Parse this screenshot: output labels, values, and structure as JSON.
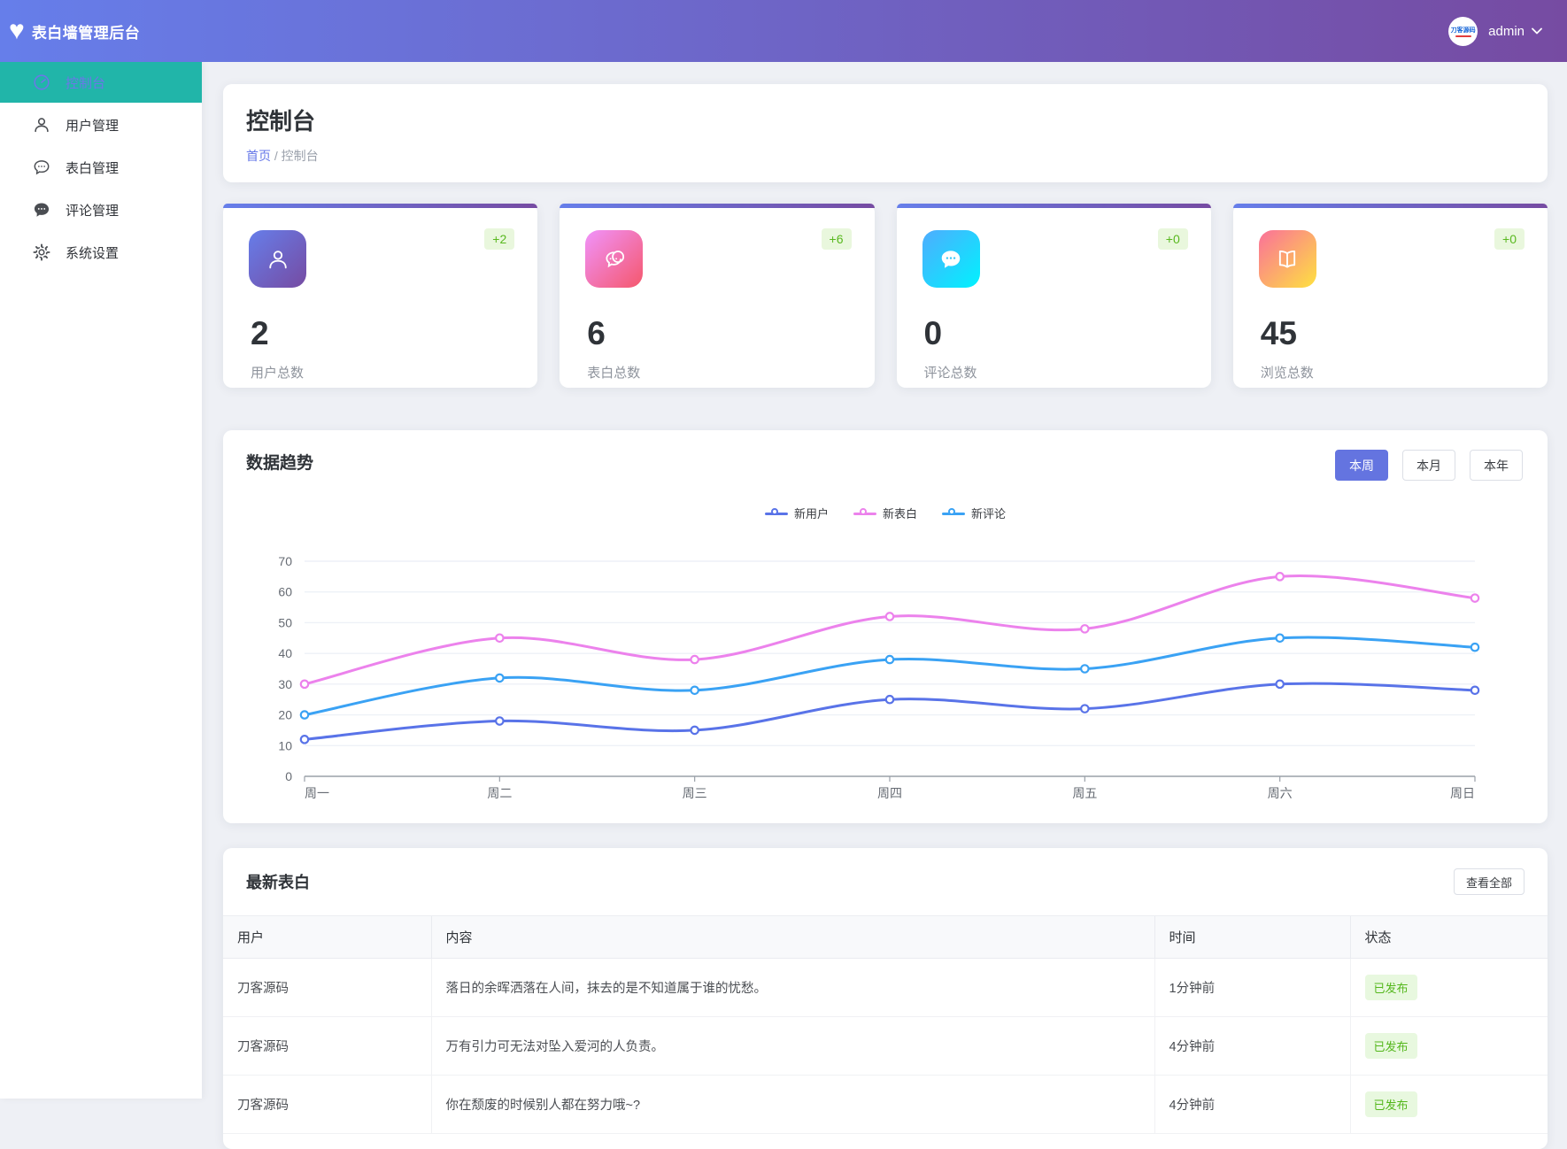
{
  "app": {
    "title": "表白墙管理后台",
    "logo_icon": "heart-icon"
  },
  "header": {
    "user": {
      "name": "admin",
      "avatar_text": "刀客源码"
    }
  },
  "sidebar": {
    "items": [
      {
        "label": "控制台",
        "icon": "dashboard-icon",
        "active": true
      },
      {
        "label": "用户管理",
        "icon": "user-icon",
        "active": false
      },
      {
        "label": "表白管理",
        "icon": "confession-bubble-icon",
        "active": false
      },
      {
        "label": "评论管理",
        "icon": "comment-bubble-icon",
        "active": false
      },
      {
        "label": "系统设置",
        "icon": "gear-icon",
        "active": false
      }
    ]
  },
  "page": {
    "title": "控制台",
    "breadcrumb": {
      "home": "首页",
      "separator": " / ",
      "current": "控制台"
    }
  },
  "stats": [
    {
      "value": "2",
      "label": "用户总数",
      "delta": "+2",
      "icon": "users-stat-icon",
      "gradient": [
        "#667eea",
        "#764ba2"
      ]
    },
    {
      "value": "6",
      "label": "表白总数",
      "delta": "+6",
      "icon": "confession-stat-icon",
      "gradient": [
        "#f093fb",
        "#f5576c"
      ]
    },
    {
      "value": "0",
      "label": "评论总数",
      "delta": "+0",
      "icon": "comments-stat-icon",
      "gradient": [
        "#4facfe",
        "#00f2fe"
      ]
    },
    {
      "value": "45",
      "label": "浏览总数",
      "delta": "+0",
      "icon": "views-stat-icon",
      "gradient": [
        "#fa709a",
        "#fee140"
      ]
    }
  ],
  "trend": {
    "title": "数据趋势",
    "range_buttons": [
      {
        "label": "本周",
        "active": true
      },
      {
        "label": "本月",
        "active": false
      },
      {
        "label": "本年",
        "active": false
      }
    ]
  },
  "chart_data": {
    "type": "line",
    "title": "数据趋势",
    "x": [
      "周一",
      "周二",
      "周三",
      "周四",
      "周五",
      "周六",
      "周日"
    ],
    "series": [
      {
        "name": "新用户",
        "color": "#5973e8",
        "values": [
          12,
          18,
          15,
          25,
          22,
          30,
          28
        ]
      },
      {
        "name": "新表白",
        "color": "#ec82ec",
        "values": [
          30,
          45,
          38,
          52,
          48,
          65,
          58
        ]
      },
      {
        "name": "新评论",
        "color": "#3aa2f4",
        "values": [
          20,
          32,
          28,
          38,
          35,
          45,
          42
        ]
      }
    ],
    "ylim": [
      0,
      70
    ],
    "y_ticks": [
      0,
      10,
      20,
      30,
      40,
      50,
      60,
      70
    ],
    "smooth": true,
    "grid": true,
    "legend_position": "top-center"
  },
  "latest": {
    "title": "最新表白",
    "view_all_label": "查看全部",
    "columns": [
      "用户",
      "内容",
      "时间",
      "状态"
    ],
    "rows": [
      {
        "user": "刀客源码",
        "content": "落日的余晖洒落在人间，抹去的是不知道属于谁的忧愁。",
        "time": "1分钟前",
        "status": "已发布"
      },
      {
        "user": "刀客源码",
        "content": "万有引力可无法对坠入爱河的人负责。",
        "time": "4分钟前",
        "status": "已发布"
      },
      {
        "user": "刀客源码",
        "content": "你在颓废的时候别人都在努力哦~?",
        "time": "4分钟前",
        "status": "已发布"
      }
    ]
  }
}
